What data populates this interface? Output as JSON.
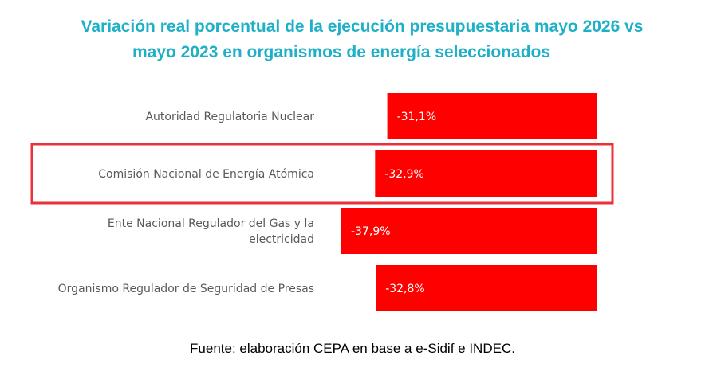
{
  "title_line1": "Variación real porcentual de la ejecución presupuestaria mayo 2026 vs",
  "title_line2": "mayo 2023 en organismos de energía seleccionados",
  "source": "Fuente: elaboración CEPA en base a e-Sidif e INDEC.",
  "colors": {
    "bar": "#ff0000",
    "title": "#1fb0c8",
    "highlight_border": "#e8313a",
    "label": "#595959"
  },
  "chart_data": {
    "type": "bar",
    "orientation": "horizontal",
    "categories": [
      [
        "Autoridad Regulatoria Nuclear"
      ],
      [
        "Comisión Nacional de Energía Atómica"
      ],
      [
        "Ente Nacional Regulador del Gas y la",
        "electricidad"
      ],
      [
        "Organismo Regulador de Seguridad de Presas"
      ]
    ],
    "values": [
      -31.1,
      -32.9,
      -37.9,
      -32.8
    ],
    "data_labels": [
      "-31,1%",
      "-32,9%",
      "-37,9%",
      "-32,8%"
    ],
    "highlighted_index": 1,
    "grid": false,
    "legend": "none"
  }
}
